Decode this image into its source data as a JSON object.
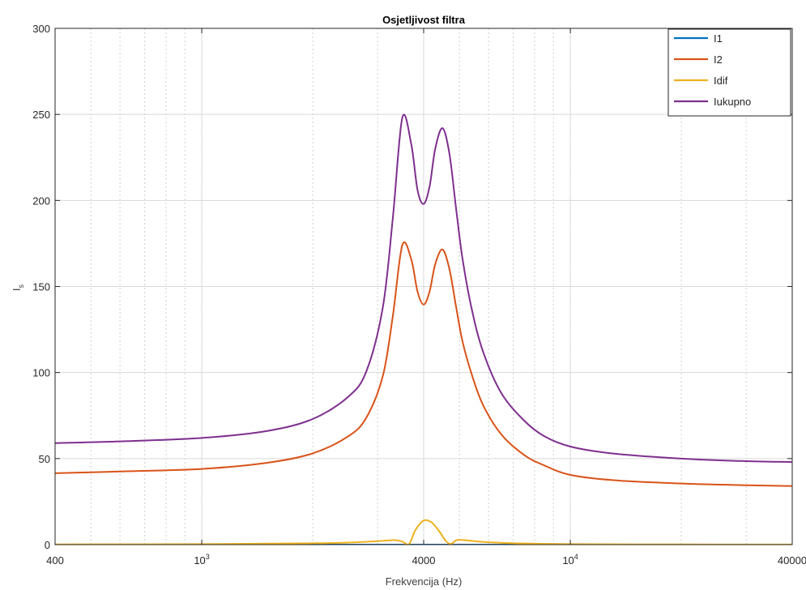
{
  "chart_data": {
    "type": "line",
    "title": "Osjetljivost filtra",
    "xlabel": "Frekvencija (Hz)",
    "ylabel": "I",
    "ylabel_sub": "s",
    "xscale": "log",
    "xlim": [
      400,
      40000
    ],
    "ylim": [
      0,
      300
    ],
    "grid": true,
    "legend_position": "top-right",
    "x_ticks": [
      {
        "value": 400,
        "label": "400",
        "sup": ""
      },
      {
        "value": 1000,
        "label": "10",
        "sup": "3"
      },
      {
        "value": 4000,
        "label": "4000",
        "sup": ""
      },
      {
        "value": 10000,
        "label": "10",
        "sup": "4"
      },
      {
        "value": 40000,
        "label": "40000",
        "sup": ""
      }
    ],
    "y_ticks": [
      {
        "value": 0,
        "label": "0"
      },
      {
        "value": 50,
        "label": "50"
      },
      {
        "value": 100,
        "label": "100"
      },
      {
        "value": 150,
        "label": "150"
      },
      {
        "value": 200,
        "label": "200"
      },
      {
        "value": 250,
        "label": "250"
      },
      {
        "value": 300,
        "label": "300"
      }
    ],
    "series": [
      {
        "name": "I1",
        "color": "#0072BD",
        "x": [
          400,
          1000,
          2000,
          3000,
          4000,
          6000,
          10000,
          20000,
          40000
        ],
        "y": [
          0,
          0,
          0,
          0,
          0,
          0,
          0,
          0,
          0
        ]
      },
      {
        "name": "I2",
        "color": "#D95319",
        "x": [
          400,
          600,
          1000,
          1500,
          2000,
          2500,
          2800,
          3100,
          3300,
          3500,
          3700,
          3850,
          4000,
          4150,
          4300,
          4500,
          4700,
          4900,
          5100,
          5400,
          5800,
          6500,
          7500,
          8500,
          10000,
          13000,
          20000,
          30000,
          40000
        ],
        "y": [
          41.5,
          42.5,
          44,
          47.5,
          53,
          63,
          74,
          98,
          133,
          174,
          166,
          147,
          139.5,
          147,
          163,
          171.5,
          160,
          138,
          118,
          99,
          81,
          64,
          52,
          46,
          40.5,
          37.5,
          35.5,
          34.5,
          34
        ]
      },
      {
        "name": "Idif",
        "color": "#EDB120",
        "x": [
          400,
          1000,
          2000,
          2500,
          3000,
          3200,
          3350,
          3500,
          3650,
          3800,
          4000,
          4200,
          4400,
          4600,
          4750,
          4900,
          5100,
          5500,
          6000,
          7000,
          10000,
          20000,
          40000
        ],
        "y": [
          0.1,
          0.3,
          0.8,
          1.2,
          2.0,
          2.4,
          2.6,
          1.8,
          0.3,
          8.5,
          14,
          13,
          8,
          2,
          0.4,
          2.5,
          2.7,
          2,
          1.4,
          0.8,
          0.3,
          0.1,
          0.05
        ]
      },
      {
        "name": "Iukupno",
        "color": "#7E2F8E",
        "x": [
          400,
          600,
          1000,
          1500,
          2000,
          2500,
          2800,
          3100,
          3300,
          3500,
          3700,
          3850,
          4000,
          4150,
          4300,
          4500,
          4700,
          4900,
          5100,
          5400,
          5800,
          6500,
          7500,
          8500,
          10000,
          13000,
          20000,
          30000,
          40000
        ],
        "y": [
          59,
          60,
          62,
          66,
          73,
          86,
          101,
          138,
          190,
          248,
          233,
          206,
          198,
          208,
          230,
          242,
          227,
          195,
          166,
          137,
          112,
          88,
          72,
          63,
          57,
          53,
          50,
          48.5,
          48
        ]
      }
    ]
  }
}
